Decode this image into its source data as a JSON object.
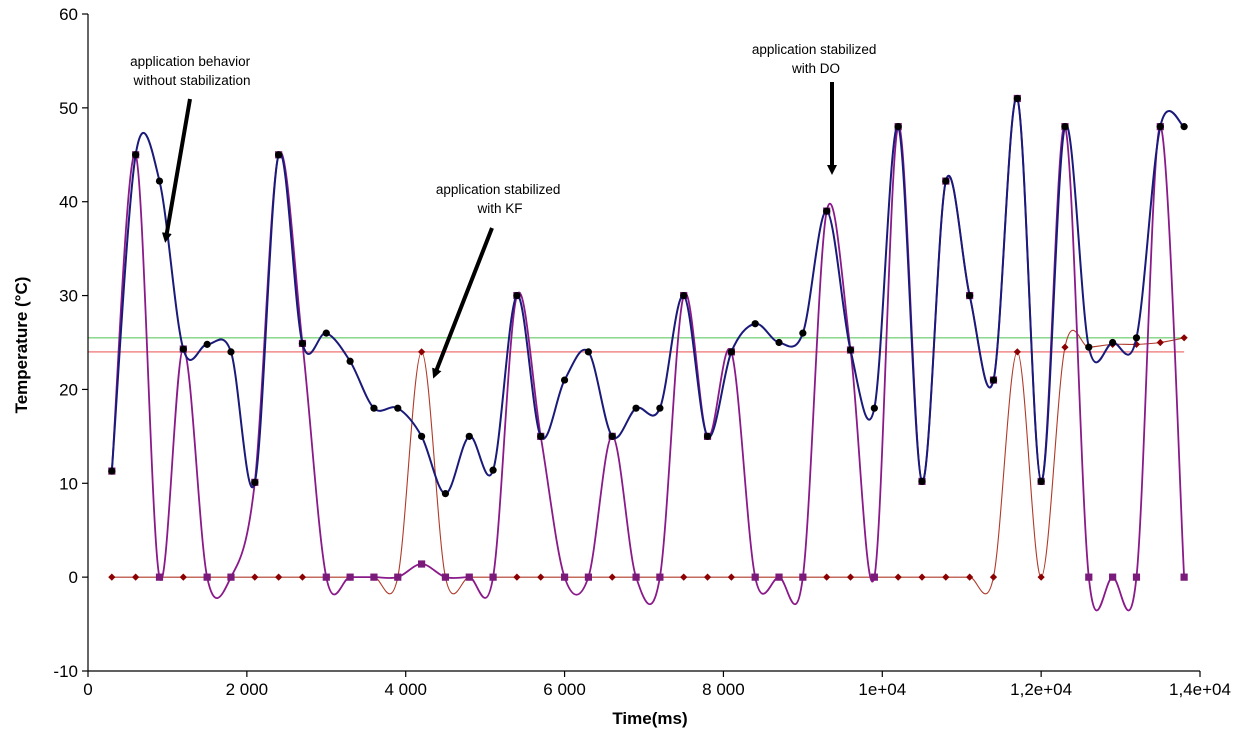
{
  "chart_data": {
    "type": "line",
    "title": "",
    "xlabel": "Time(ms)",
    "ylabel": "Temperature (°C)",
    "xlim": [
      0,
      14000
    ],
    "ylim": [
      -10,
      60
    ],
    "grid": false,
    "x_ticks": [
      0,
      2000,
      4000,
      6000,
      8000,
      10000,
      12000,
      14000
    ],
    "x_tick_labels": [
      "0",
      "2 000",
      "4 000",
      "6 000",
      "8 000",
      "1e+04",
      "1,2e+04",
      "1,4e+04"
    ],
    "y_ticks": [
      -10,
      0,
      10,
      20,
      30,
      40,
      50,
      60
    ],
    "y_tick_labels": [
      "-10",
      "0",
      "10",
      "20",
      "30",
      "40",
      "50",
      "60"
    ],
    "reference_lines": [
      {
        "color": "#7fd37f",
        "y": 25.5
      },
      {
        "color": "#f08a8a",
        "y": 24
      }
    ],
    "series": [
      {
        "color": "#1a1a7a",
        "marker_color": "#000000",
        "marker": "circle",
        "points": [
          [
            300,
            11.3
          ],
          [
            600,
            45
          ],
          [
            900,
            42.2
          ],
          [
            1200,
            24.3
          ],
          [
            1500,
            24.8
          ],
          [
            1800,
            24
          ],
          [
            2100,
            10.1
          ],
          [
            2400,
            45
          ],
          [
            2700,
            24.9
          ],
          [
            3000,
            26
          ],
          [
            3300,
            23
          ],
          [
            3600,
            18
          ],
          [
            3900,
            18
          ],
          [
            4200,
            15
          ],
          [
            4500,
            8.9
          ],
          [
            4800,
            15
          ],
          [
            5100,
            11.4
          ],
          [
            5400,
            30
          ],
          [
            5700,
            15
          ],
          [
            6000,
            21
          ],
          [
            6300,
            24
          ],
          [
            6600,
            15
          ],
          [
            6900,
            18
          ],
          [
            7200,
            18
          ],
          [
            7500,
            30
          ],
          [
            7800,
            15
          ],
          [
            8100,
            24
          ],
          [
            8400,
            27
          ],
          [
            8700,
            25
          ],
          [
            9000,
            26
          ],
          [
            9300,
            39
          ],
          [
            9600,
            24.2
          ],
          [
            9900,
            18
          ],
          [
            10200,
            48
          ],
          [
            10500,
            10.2
          ],
          [
            10800,
            42.2
          ],
          [
            11100,
            30
          ],
          [
            11400,
            21
          ],
          [
            11700,
            51
          ],
          [
            12000,
            10.2
          ],
          [
            12300,
            48
          ],
          [
            12600,
            24.5
          ],
          [
            12900,
            25
          ],
          [
            13200,
            25.5
          ],
          [
            13500,
            48
          ],
          [
            13800,
            48
          ]
        ]
      },
      {
        "color": "#8a1a8a",
        "marker_color": "#7a1a7a",
        "marker": "square",
        "points": [
          [
            300,
            11.3
          ],
          [
            600,
            45
          ],
          [
            900,
            0
          ],
          [
            1200,
            24.3
          ],
          [
            1500,
            0
          ],
          [
            1800,
            0
          ],
          [
            2100,
            10.1
          ],
          [
            2400,
            45
          ],
          [
            2700,
            24.9
          ],
          [
            3000,
            0
          ],
          [
            3300,
            0
          ],
          [
            3600,
            0
          ],
          [
            3900,
            0
          ],
          [
            4200,
            1.4
          ],
          [
            4500,
            0
          ],
          [
            4800,
            0
          ],
          [
            5100,
            0
          ],
          [
            5400,
            30
          ],
          [
            5700,
            15
          ],
          [
            6000,
            0
          ],
          [
            6300,
            0
          ],
          [
            6600,
            15
          ],
          [
            6900,
            0
          ],
          [
            7200,
            0
          ],
          [
            7500,
            30
          ],
          [
            7800,
            15
          ],
          [
            8100,
            24
          ],
          [
            8400,
            0
          ],
          [
            8700,
            0
          ],
          [
            9000,
            0
          ],
          [
            9300,
            39
          ],
          [
            9600,
            24.2
          ],
          [
            9900,
            0
          ],
          [
            10200,
            48
          ],
          [
            10500,
            10.2
          ],
          [
            10800,
            42.2
          ],
          [
            11100,
            30
          ],
          [
            11400,
            21
          ],
          [
            11700,
            51
          ],
          [
            12000,
            10.2
          ],
          [
            12300,
            48
          ],
          [
            12600,
            0
          ],
          [
            12900,
            0
          ],
          [
            13200,
            0
          ],
          [
            13500,
            48
          ],
          [
            13800,
            0
          ]
        ]
      },
      {
        "color": "#b03a2a",
        "marker_color": "#8b0000",
        "marker": "diamond",
        "points": [
          [
            300,
            0
          ],
          [
            600,
            0
          ],
          [
            900,
            0
          ],
          [
            1200,
            0
          ],
          [
            1500,
            0
          ],
          [
            1800,
            0
          ],
          [
            2100,
            0
          ],
          [
            2400,
            0
          ],
          [
            2700,
            0
          ],
          [
            3000,
            0
          ],
          [
            3300,
            0
          ],
          [
            3600,
            0
          ],
          [
            3900,
            0
          ],
          [
            4200,
            24
          ],
          [
            4500,
            0
          ],
          [
            4800,
            0
          ],
          [
            5100,
            0
          ],
          [
            5400,
            0
          ],
          [
            5700,
            0
          ],
          [
            6000,
            0
          ],
          [
            6300,
            0
          ],
          [
            6600,
            0
          ],
          [
            6900,
            0
          ],
          [
            7200,
            0
          ],
          [
            7500,
            0
          ],
          [
            7800,
            0
          ],
          [
            8100,
            0
          ],
          [
            8400,
            0
          ],
          [
            8700,
            0
          ],
          [
            9000,
            0
          ],
          [
            9300,
            0
          ],
          [
            9600,
            0
          ],
          [
            9900,
            0
          ],
          [
            10200,
            0
          ],
          [
            10500,
            0
          ],
          [
            10800,
            0
          ],
          [
            11100,
            0
          ],
          [
            11400,
            0
          ],
          [
            11700,
            24
          ],
          [
            12000,
            0
          ],
          [
            12300,
            24.5
          ],
          [
            12600,
            24.5
          ],
          [
            12900,
            24.8
          ],
          [
            13200,
            24.8
          ],
          [
            13500,
            25
          ],
          [
            13800,
            25.5
          ]
        ]
      }
    ],
    "annotations": [
      {
        "lines": [
          "application behavior",
          "without stabilization"
        ]
      },
      {
        "lines": [
          "application stabilized",
          "with KF"
        ]
      },
      {
        "lines": [
          "application stabilized",
          "with DO"
        ]
      }
    ]
  }
}
